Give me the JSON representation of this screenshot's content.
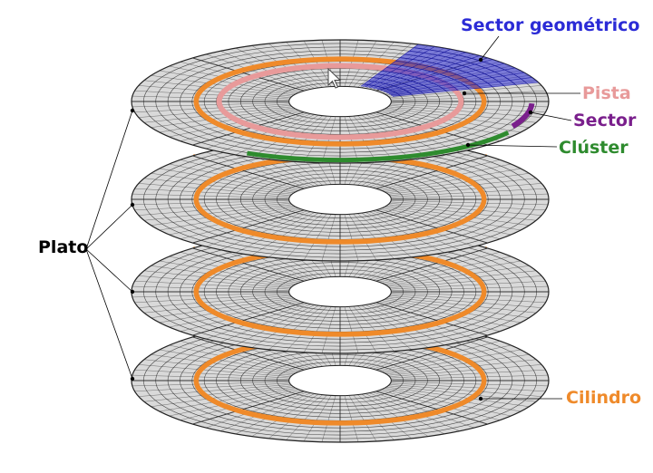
{
  "labels": {
    "geometric_sector": "Sector geométrico",
    "track": "Pista",
    "sector": "Sector",
    "cluster": "Clúster",
    "platter": "Plato",
    "cylinder": "Cilindro"
  },
  "colors": {
    "geometric_sector": "#2b2bd6",
    "track": "#e89a9a",
    "sector": "#7a1f8c",
    "cluster": "#2e8b2e",
    "platter": "#000000",
    "cylinder": "#ef8a2a",
    "disk_fill": "#d9d9d9",
    "grid_line": "#222222"
  },
  "icons": {
    "cursor": "mouse-pointer-icon"
  }
}
